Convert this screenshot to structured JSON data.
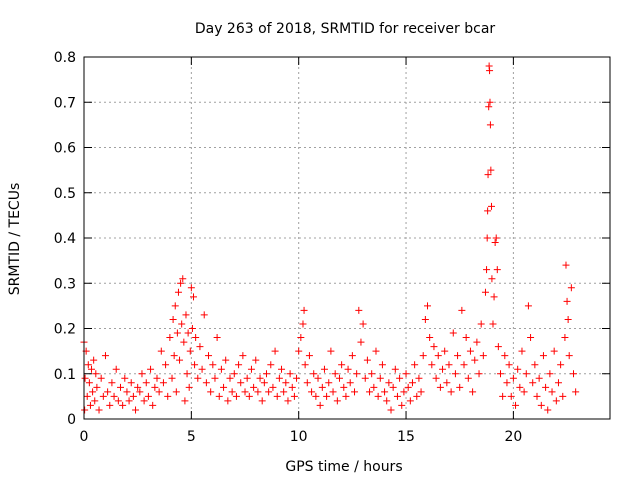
{
  "chart_data": {
    "type": "scatter",
    "title": "Day 263 of 2018, SRMTID for receiver bcar",
    "xlabel": "GPS time / hours",
    "ylabel": "SRMTID / TECUs",
    "xlim": [
      0,
      24.5
    ],
    "ylim": [
      0,
      0.8
    ],
    "xticks": [
      0,
      5,
      10,
      15,
      20
    ],
    "yticks": [
      0,
      0.1,
      0.2,
      0.3,
      0.4,
      0.5,
      0.6,
      0.7,
      0.8
    ],
    "grid": true,
    "marker": "+",
    "color": "#ff0000",
    "series": [
      {
        "name": "SRMTID",
        "points": [
          [
            0.0,
            0.17
          ],
          [
            0.03,
            0.02
          ],
          [
            0.05,
            0.09
          ],
          [
            0.1,
            0.15
          ],
          [
            0.15,
            0.05
          ],
          [
            0.2,
            0.12
          ],
          [
            0.25,
            0.08
          ],
          [
            0.3,
            0.03
          ],
          [
            0.35,
            0.11
          ],
          [
            0.4,
            0.06
          ],
          [
            0.45,
            0.13
          ],
          [
            0.5,
            0.04
          ],
          [
            0.55,
            0.1
          ],
          [
            0.6,
            0.07
          ],
          [
            0.7,
            0.02
          ],
          [
            0.8,
            0.09
          ],
          [
            0.9,
            0.05
          ],
          [
            1.0,
            0.14
          ],
          [
            1.1,
            0.06
          ],
          [
            1.2,
            0.03
          ],
          [
            1.3,
            0.08
          ],
          [
            1.4,
            0.05
          ],
          [
            1.5,
            0.11
          ],
          [
            1.6,
            0.04
          ],
          [
            1.7,
            0.07
          ],
          [
            1.8,
            0.03
          ],
          [
            1.9,
            0.09
          ],
          [
            2.0,
            0.06
          ],
          [
            2.1,
            0.04
          ],
          [
            2.2,
            0.08
          ],
          [
            2.3,
            0.05
          ],
          [
            2.4,
            0.02
          ],
          [
            2.5,
            0.07
          ],
          [
            2.6,
            0.06
          ],
          [
            2.7,
            0.1
          ],
          [
            2.8,
            0.04
          ],
          [
            2.9,
            0.08
          ],
          [
            3.0,
            0.05
          ],
          [
            3.1,
            0.11
          ],
          [
            3.2,
            0.03
          ],
          [
            3.3,
            0.07
          ],
          [
            3.4,
            0.09
          ],
          [
            3.5,
            0.06
          ],
          [
            3.6,
            0.15
          ],
          [
            3.7,
            0.08
          ],
          [
            3.8,
            0.12
          ],
          [
            3.9,
            0.05
          ],
          [
            4.0,
            0.18
          ],
          [
            4.1,
            0.09
          ],
          [
            4.15,
            0.22
          ],
          [
            4.2,
            0.14
          ],
          [
            4.25,
            0.25
          ],
          [
            4.3,
            0.06
          ],
          [
            4.35,
            0.19
          ],
          [
            4.4,
            0.28
          ],
          [
            4.45,
            0.13
          ],
          [
            4.5,
            0.3
          ],
          [
            4.55,
            0.21
          ],
          [
            4.6,
            0.31
          ],
          [
            4.65,
            0.17
          ],
          [
            4.7,
            0.04
          ],
          [
            4.75,
            0.23
          ],
          [
            4.8,
            0.1
          ],
          [
            4.85,
            0.19
          ],
          [
            4.9,
            0.07
          ],
          [
            4.95,
            0.15
          ],
          [
            5.0,
            0.29
          ],
          [
            5.05,
            0.2
          ],
          [
            5.1,
            0.27
          ],
          [
            5.15,
            0.12
          ],
          [
            5.2,
            0.18
          ],
          [
            5.3,
            0.09
          ],
          [
            5.4,
            0.16
          ],
          [
            5.5,
            0.11
          ],
          [
            5.6,
            0.23
          ],
          [
            5.7,
            0.08
          ],
          [
            5.8,
            0.14
          ],
          [
            5.9,
            0.06
          ],
          [
            6.0,
            0.12
          ],
          [
            6.1,
            0.09
          ],
          [
            6.2,
            0.18
          ],
          [
            6.3,
            0.05
          ],
          [
            6.4,
            0.11
          ],
          [
            6.5,
            0.07
          ],
          [
            6.6,
            0.13
          ],
          [
            6.7,
            0.04
          ],
          [
            6.8,
            0.09
          ],
          [
            6.9,
            0.06
          ],
          [
            7.0,
            0.1
          ],
          [
            7.1,
            0.05
          ],
          [
            7.2,
            0.12
          ],
          [
            7.3,
            0.08
          ],
          [
            7.4,
            0.14
          ],
          [
            7.5,
            0.06
          ],
          [
            7.6,
            0.09
          ],
          [
            7.7,
            0.05
          ],
          [
            7.8,
            0.11
          ],
          [
            7.9,
            0.07
          ],
          [
            8.0,
            0.13
          ],
          [
            8.1,
            0.06
          ],
          [
            8.2,
            0.09
          ],
          [
            8.3,
            0.04
          ],
          [
            8.4,
            0.08
          ],
          [
            8.5,
            0.1
          ],
          [
            8.6,
            0.06
          ],
          [
            8.7,
            0.12
          ],
          [
            8.8,
            0.07
          ],
          [
            8.9,
            0.15
          ],
          [
            9.0,
            0.05
          ],
          [
            9.1,
            0.09
          ],
          [
            9.2,
            0.11
          ],
          [
            9.3,
            0.06
          ],
          [
            9.4,
            0.08
          ],
          [
            9.5,
            0.04
          ],
          [
            9.6,
            0.1
          ],
          [
            9.7,
            0.07
          ],
          [
            9.8,
            0.05
          ],
          [
            9.9,
            0.09
          ],
          [
            10.0,
            0.15
          ],
          [
            10.1,
            0.18
          ],
          [
            10.2,
            0.21
          ],
          [
            10.25,
            0.24
          ],
          [
            10.3,
            0.12
          ],
          [
            10.4,
            0.08
          ],
          [
            10.5,
            0.14
          ],
          [
            10.6,
            0.06
          ],
          [
            10.7,
            0.1
          ],
          [
            10.8,
            0.05
          ],
          [
            10.9,
            0.09
          ],
          [
            11.0,
            0.03
          ],
          [
            11.1,
            0.07
          ],
          [
            11.2,
            0.11
          ],
          [
            11.3,
            0.05
          ],
          [
            11.4,
            0.08
          ],
          [
            11.5,
            0.15
          ],
          [
            11.6,
            0.06
          ],
          [
            11.7,
            0.1
          ],
          [
            11.8,
            0.04
          ],
          [
            11.9,
            0.09
          ],
          [
            12.0,
            0.12
          ],
          [
            12.1,
            0.07
          ],
          [
            12.2,
            0.05
          ],
          [
            12.3,
            0.11
          ],
          [
            12.4,
            0.08
          ],
          [
            12.5,
            0.14
          ],
          [
            12.6,
            0.06
          ],
          [
            12.7,
            0.1
          ],
          [
            12.8,
            0.24
          ],
          [
            12.9,
            0.17
          ],
          [
            13.0,
            0.21
          ],
          [
            13.1,
            0.09
          ],
          [
            13.2,
            0.13
          ],
          [
            13.3,
            0.06
          ],
          [
            13.4,
            0.1
          ],
          [
            13.5,
            0.07
          ],
          [
            13.6,
            0.15
          ],
          [
            13.7,
            0.05
          ],
          [
            13.8,
            0.09
          ],
          [
            13.9,
            0.12
          ],
          [
            14.0,
            0.06
          ],
          [
            14.1,
            0.04
          ],
          [
            14.2,
            0.08
          ],
          [
            14.3,
            0.02
          ],
          [
            14.4,
            0.07
          ],
          [
            14.5,
            0.11
          ],
          [
            14.6,
            0.05
          ],
          [
            14.7,
            0.09
          ],
          [
            14.8,
            0.03
          ],
          [
            14.9,
            0.06
          ],
          [
            15.0,
            0.1
          ],
          [
            15.1,
            0.07
          ],
          [
            15.2,
            0.04
          ],
          [
            15.3,
            0.08
          ],
          [
            15.4,
            0.12
          ],
          [
            15.5,
            0.05
          ],
          [
            15.6,
            0.09
          ],
          [
            15.7,
            0.06
          ],
          [
            15.8,
            0.14
          ],
          [
            15.9,
            0.22
          ],
          [
            16.0,
            0.25
          ],
          [
            16.1,
            0.18
          ],
          [
            16.2,
            0.12
          ],
          [
            16.3,
            0.16
          ],
          [
            16.4,
            0.09
          ],
          [
            16.5,
            0.14
          ],
          [
            16.6,
            0.07
          ],
          [
            16.7,
            0.11
          ],
          [
            16.8,
            0.15
          ],
          [
            16.9,
            0.08
          ],
          [
            17.0,
            0.12
          ],
          [
            17.1,
            0.06
          ],
          [
            17.2,
            0.19
          ],
          [
            17.3,
            0.1
          ],
          [
            17.4,
            0.14
          ],
          [
            17.5,
            0.07
          ],
          [
            17.6,
            0.24
          ],
          [
            17.7,
            0.12
          ],
          [
            17.8,
            0.18
          ],
          [
            17.9,
            0.09
          ],
          [
            18.0,
            0.15
          ],
          [
            18.1,
            0.06
          ],
          [
            18.2,
            0.13
          ],
          [
            18.3,
            0.17
          ],
          [
            18.4,
            0.1
          ],
          [
            18.5,
            0.21
          ],
          [
            18.6,
            0.14
          ],
          [
            18.7,
            0.28
          ],
          [
            18.75,
            0.33
          ],
          [
            18.78,
            0.4
          ],
          [
            18.8,
            0.46
          ],
          [
            18.82,
            0.54
          ],
          [
            18.85,
            0.69
          ],
          [
            18.87,
            0.78
          ],
          [
            18.89,
            0.77
          ],
          [
            18.91,
            0.7
          ],
          [
            18.93,
            0.65
          ],
          [
            18.95,
            0.55
          ],
          [
            18.98,
            0.47
          ],
          [
            19.0,
            0.31
          ],
          [
            19.05,
            0.21
          ],
          [
            19.1,
            0.27
          ],
          [
            19.15,
            0.39
          ],
          [
            19.2,
            0.4
          ],
          [
            19.25,
            0.33
          ],
          [
            19.3,
            0.16
          ],
          [
            19.4,
            0.1
          ],
          [
            19.5,
            0.05
          ],
          [
            19.6,
            0.14
          ],
          [
            19.7,
            0.08
          ],
          [
            19.8,
            0.12
          ],
          [
            19.9,
            0.05
          ],
          [
            20.0,
            0.09
          ],
          [
            20.1,
            0.03
          ],
          [
            20.2,
            0.11
          ],
          [
            20.3,
            0.07
          ],
          [
            20.4,
            0.15
          ],
          [
            20.5,
            0.06
          ],
          [
            20.6,
            0.1
          ],
          [
            20.7,
            0.25
          ],
          [
            20.8,
            0.18
          ],
          [
            20.9,
            0.08
          ],
          [
            21.0,
            0.12
          ],
          [
            21.1,
            0.05
          ],
          [
            21.2,
            0.09
          ],
          [
            21.3,
            0.03
          ],
          [
            21.4,
            0.14
          ],
          [
            21.5,
            0.07
          ],
          [
            21.6,
            0.02
          ],
          [
            21.7,
            0.1
          ],
          [
            21.8,
            0.06
          ],
          [
            21.9,
            0.15
          ],
          [
            22.0,
            0.04
          ],
          [
            22.1,
            0.08
          ],
          [
            22.2,
            0.12
          ],
          [
            22.3,
            0.05
          ],
          [
            22.4,
            0.18
          ],
          [
            22.45,
            0.34
          ],
          [
            22.5,
            0.26
          ],
          [
            22.55,
            0.22
          ],
          [
            22.6,
            0.14
          ],
          [
            22.7,
            0.29
          ],
          [
            22.8,
            0.1
          ],
          [
            22.9,
            0.06
          ]
        ]
      }
    ]
  }
}
